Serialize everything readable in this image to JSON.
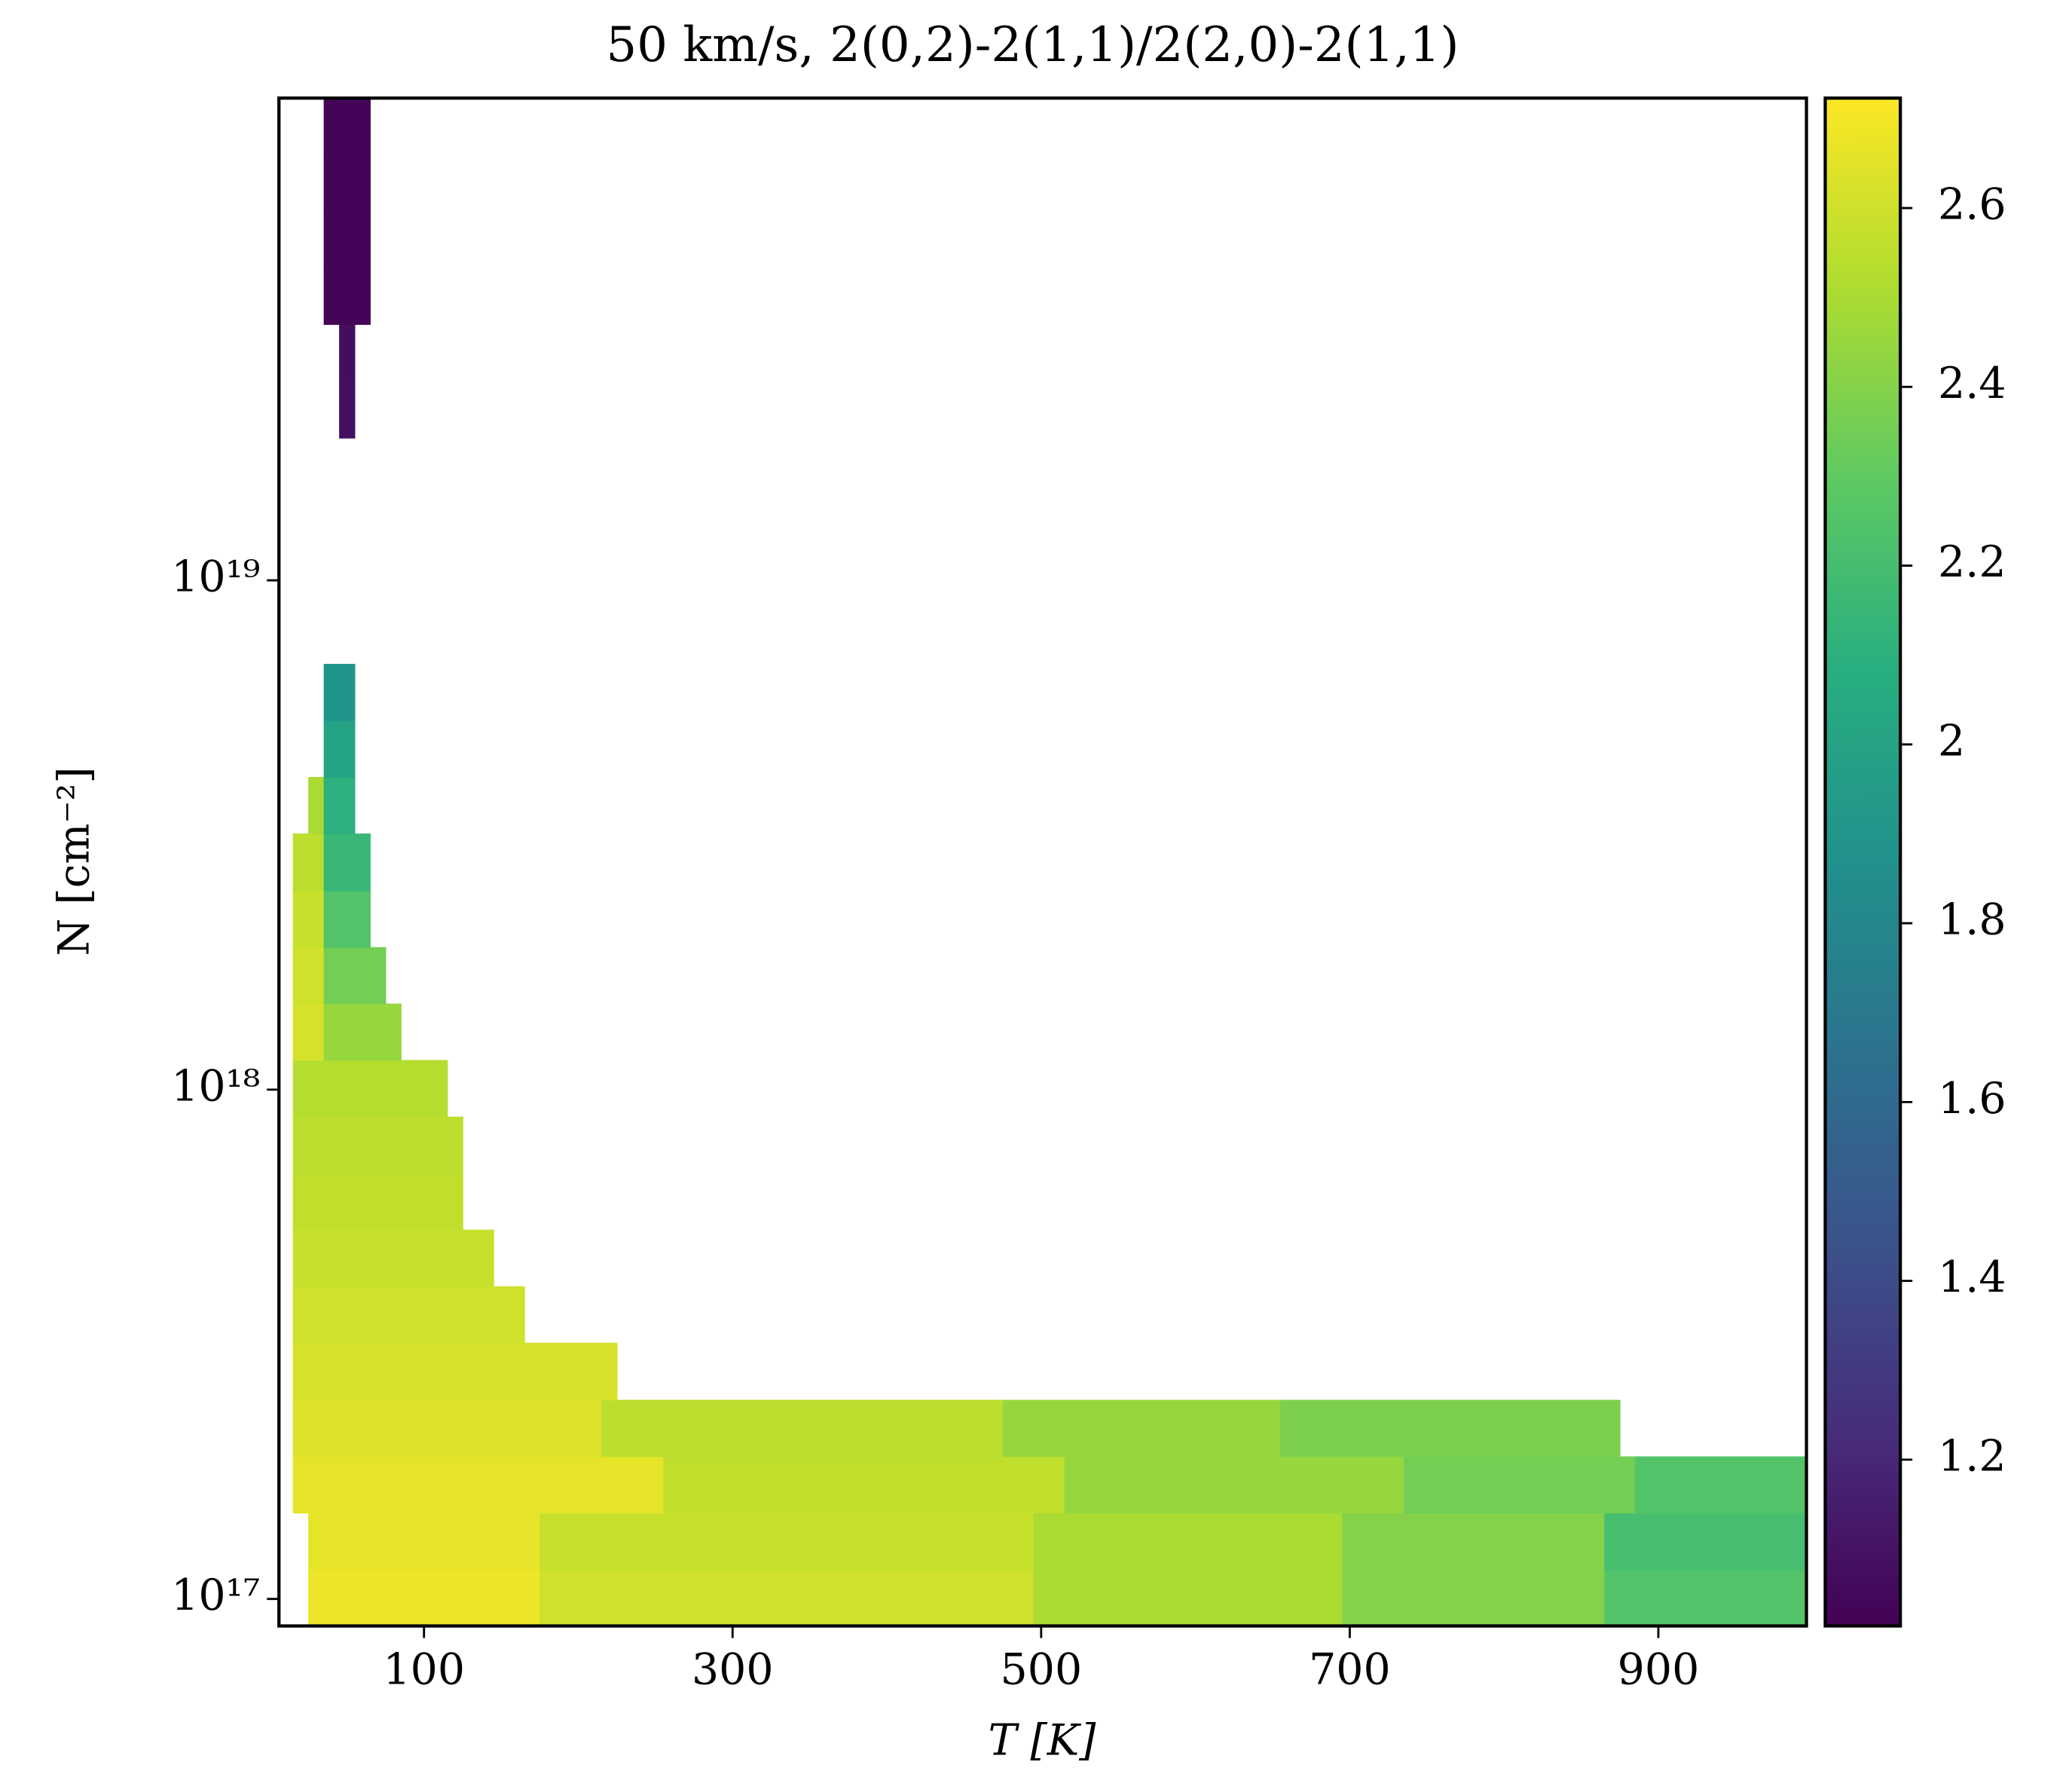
{
  "chart_data": {
    "type": "heatmap",
    "title": "50 km/s, 2(0,2)-2(1,1)/2(2,0)-2(1,1)",
    "xlabel": "T [K]",
    "ylabel": "N [cm⁻²]",
    "xlim": [
      6,
      996
    ],
    "xticks": [
      100,
      300,
      500,
      700,
      900
    ],
    "ylim": [
      8.85e+16,
      8.85e+19
    ],
    "ylog": true,
    "yticks": [
      {
        "value": 1e+17,
        "label": "10¹⁷"
      },
      {
        "value": 1e+18,
        "label": "10¹⁸"
      },
      {
        "value": 1e+19,
        "label": "10¹⁹"
      }
    ],
    "colormap": "viridis",
    "clim": [
      1.014,
      2.723
    ],
    "cticks": [
      1.2,
      1.4,
      1.6,
      1.8,
      2.0,
      2.2,
      2.4,
      2.6
    ],
    "y_edges": [
      8.85e+16,
      1.143e+17,
      1.476e+17,
      1.905e+17,
      2.46e+17,
      3.184e+17,
      4.111e+17,
      5.309e+17,
      6.855e+17,
      8.851e+17,
      1.143e+18,
      1.476e+18,
      1.905e+18,
      2.46e+18,
      3.184e+18,
      4.111e+18,
      5.309e+18,
      6.855e+18,
      8.851e+18,
      1.143e+19,
      1.476e+19,
      1.905e+19,
      2.46e+19,
      3.184e+19,
      4.111e+19,
      5.309e+19,
      6.855e+19,
      8.85e+19
    ],
    "rows": [
      [
        {
          "x": [
            25,
            175
          ],
          "v": 2.68
        },
        {
          "x": [
            175,
            495
          ],
          "v": 2.6
        },
        {
          "x": [
            495,
            695
          ],
          "v": 2.5
        },
        {
          "x": [
            695,
            865
          ],
          "v": 2.4
        },
        {
          "x": [
            865,
            995
          ],
          "v": 2.25
        }
      ],
      [
        {
          "x": [
            25,
            175
          ],
          "v": 2.66
        },
        {
          "x": [
            175,
            495
          ],
          "v": 2.58
        },
        {
          "x": [
            495,
            695
          ],
          "v": 2.5
        },
        {
          "x": [
            695,
            865
          ],
          "v": 2.4
        },
        {
          "x": [
            865,
            995
          ],
          "v": 2.2
        }
      ],
      [
        {
          "x": [
            15,
            255
          ],
          "v": 2.66
        },
        {
          "x": [
            255,
            515
          ],
          "v": 2.56
        },
        {
          "x": [
            515,
            735
          ],
          "v": 2.45
        },
        {
          "x": [
            735,
            885
          ],
          "v": 2.35
        },
        {
          "x": [
            885,
            995
          ],
          "v": 2.25
        }
      ],
      [
        {
          "x": [
            15,
            215
          ],
          "v": 2.64
        },
        {
          "x": [
            215,
            475
          ],
          "v": 2.55
        },
        {
          "x": [
            475,
            655
          ],
          "v": 2.45
        },
        {
          "x": [
            655,
            875
          ],
          "v": 2.38
        }
      ],
      [
        {
          "x": [
            15,
            225
          ],
          "v": 2.62
        }
      ],
      [
        {
          "x": [
            15,
            165
          ],
          "v": 2.6
        }
      ],
      [
        {
          "x": [
            15,
            145
          ],
          "v": 2.58
        }
      ],
      [
        {
          "x": [
            15,
            125
          ],
          "v": 2.56
        }
      ],
      [
        {
          "x": [
            15,
            125
          ],
          "v": 2.55
        }
      ],
      [
        {
          "x": [
            15,
            115
          ],
          "v": 2.53
        }
      ],
      [
        {
          "x": [
            15,
            35
          ],
          "v": 2.62
        },
        {
          "x": [
            35,
            85
          ],
          "v": 2.45
        }
      ],
      [
        {
          "x": [
            15,
            35
          ],
          "v": 2.6
        },
        {
          "x": [
            35,
            75
          ],
          "v": 2.35
        }
      ],
      [
        {
          "x": [
            15,
            35
          ],
          "v": 2.58
        },
        {
          "x": [
            35,
            65
          ],
          "v": 2.25
        }
      ],
      [
        {
          "x": [
            15,
            35
          ],
          "v": 2.55
        },
        {
          "x": [
            35,
            65
          ],
          "v": 2.15
        }
      ],
      [
        {
          "x": [
            25,
            35
          ],
          "v": 2.5
        },
        {
          "x": [
            35,
            55
          ],
          "v": 2.1
        }
      ],
      [
        {
          "x": [
            35,
            55
          ],
          "v": 2.0
        }
      ],
      [
        {
          "x": [
            35,
            55
          ],
          "v": 1.9
        }
      ],
      [],
      [],
      [],
      [],
      [
        {
          "x": [
            45,
            55
          ],
          "v": 1.08
        }
      ],
      [
        {
          "x": [
            45,
            55
          ],
          "v": 1.07
        }
      ],
      [
        {
          "x": [
            35,
            65
          ],
          "v": 1.03
        }
      ],
      [
        {
          "x": [
            35,
            65
          ],
          "v": 1.03
        }
      ],
      [
        {
          "x": [
            35,
            65
          ],
          "v": 1.03
        }
      ],
      [
        {
          "x": [
            35,
            65
          ],
          "v": 1.03
        }
      ]
    ]
  }
}
